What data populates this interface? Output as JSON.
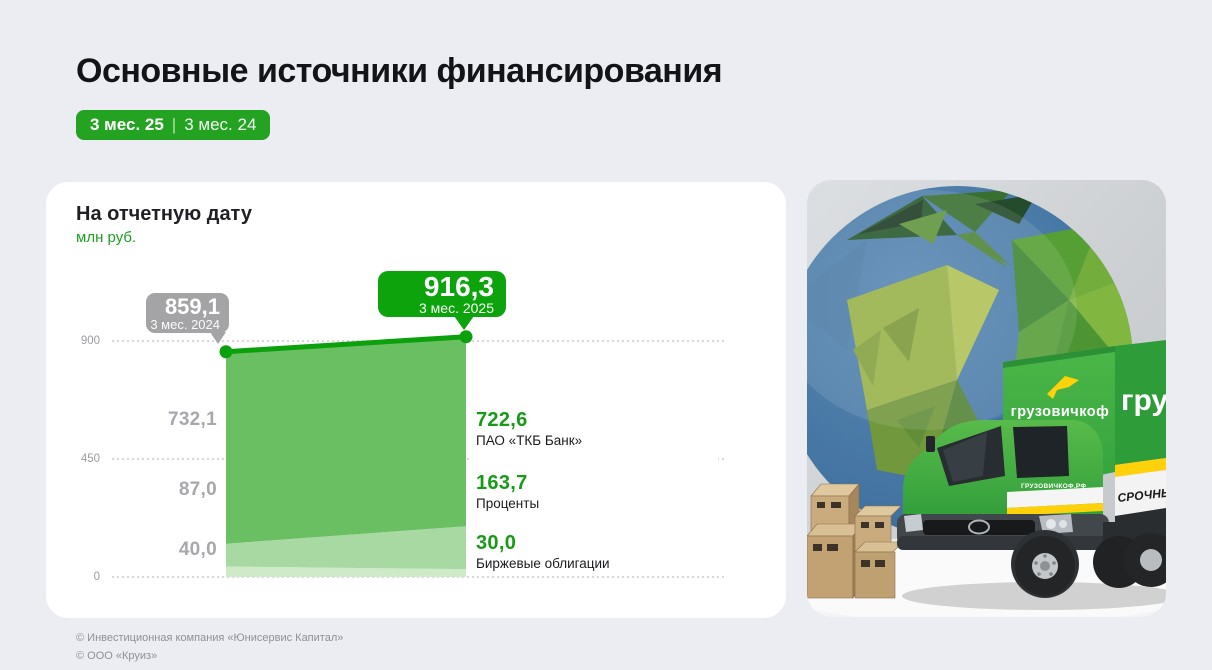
{
  "header": {
    "title": "Основные источники финансирования",
    "period_badge": {
      "current": "3 мес. 25",
      "divider": "|",
      "previous": "3 мес. 24"
    }
  },
  "card": {
    "heading": "На отчетную дату",
    "unit": "млн руб."
  },
  "chart_data": {
    "type": "area",
    "stacked": true,
    "title": "На отчетную дату",
    "ylabel": "млн руб.",
    "x_labels": [
      "3 мес. 2024",
      "3 мес. 2025"
    ],
    "ylim": [
      0,
      900
    ],
    "yticks": [
      "900",
      "450",
      "0"
    ],
    "grid": "dotted-horizontal",
    "legend_position": "right-value-labels",
    "series": [
      {
        "name": "ПАО «ТКБ Банк»",
        "values": [
          732.1,
          722.6
        ],
        "display": [
          "732,1",
          "722,6"
        ],
        "color": "#6abf63"
      },
      {
        "name": "Проценты",
        "values": [
          87.0,
          163.7
        ],
        "display": [
          "87,0",
          "163,7"
        ],
        "color": "#a9d9a2"
      },
      {
        "name": "Биржевые облигации",
        "values": [
          40.0,
          30.0
        ],
        "display": [
          "40,0",
          "30,0"
        ],
        "color": "#cfeac9"
      }
    ],
    "totals": {
      "values": [
        859.1,
        916.3
      ],
      "display": [
        "859,1",
        "916,3"
      ]
    },
    "line_color": "#0ca00c"
  },
  "callouts": {
    "prev": {
      "value": "859,1",
      "label": "3 мес. 2024",
      "color": "#a4a4a6"
    },
    "curr": {
      "value": "916,3",
      "label": "3 мес. 2025",
      "color": "#0da30d"
    }
  },
  "yticks": {
    "t900": "900",
    "t450": "450",
    "t0": "0"
  },
  "left_values": {
    "v0": "732,1",
    "v1": "87,0",
    "v2": "40,0"
  },
  "right_values": {
    "r0": {
      "value": "722,6",
      "label": "ПАО «ТКБ Банк»"
    },
    "r1": {
      "value": "163,7",
      "label": "Проценты"
    },
    "r2": {
      "value": "30,0",
      "label": "Биржевые облигации"
    }
  },
  "promo": {
    "brand": "грузовичкоф",
    "brand_side_partial": "гру",
    "door_text": "ГРУЗОВИЧКОФ.РФ",
    "stripe_text": "СРОЧНЫЙ",
    "truck_green": "#3cab3c",
    "accent_yellow": "#ffd10a"
  },
  "footer": {
    "line1": "© Инвестиционная компания «Юнисервис Капитал»",
    "line2": "© ООО «Круиз»"
  }
}
